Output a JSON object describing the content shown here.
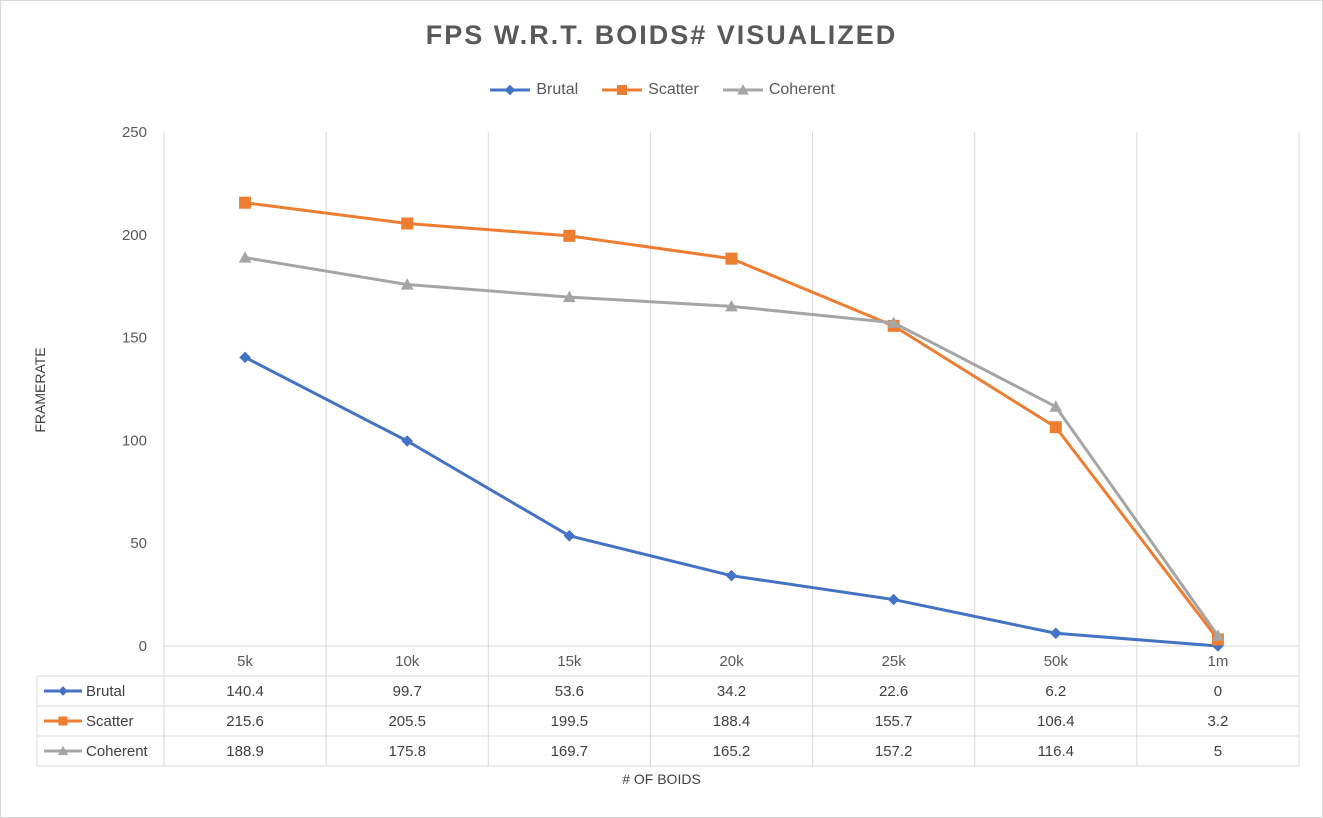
{
  "chart_data": {
    "type": "line",
    "title": "FPS W.R.T. BOIDS# VISUALIZED",
    "xlabel": "# OF BOIDS",
    "ylabel": "FRAMERATE",
    "ylim": [
      0,
      250
    ],
    "yticks": [
      0,
      50,
      100,
      150,
      200,
      250
    ],
    "categories": [
      "5k",
      "10k",
      "15k",
      "20k",
      "25k",
      "50k",
      "1m"
    ],
    "grid": "vertical",
    "legend": "top",
    "data_table": true,
    "series": [
      {
        "name": "Brutal",
        "color": "#4472c4",
        "marker": "diamond",
        "values": [
          140.4,
          99.7,
          53.6,
          34.2,
          22.6,
          6.2,
          0
        ]
      },
      {
        "name": "Scatter",
        "color": "#ed7d31",
        "marker": "square",
        "values": [
          215.6,
          205.5,
          199.5,
          188.4,
          155.7,
          106.4,
          3.2
        ]
      },
      {
        "name": "Coherent",
        "color": "#a5a5a5",
        "marker": "triangle",
        "values": [
          188.9,
          175.8,
          169.7,
          165.2,
          157.2,
          116.4,
          5
        ]
      }
    ]
  }
}
